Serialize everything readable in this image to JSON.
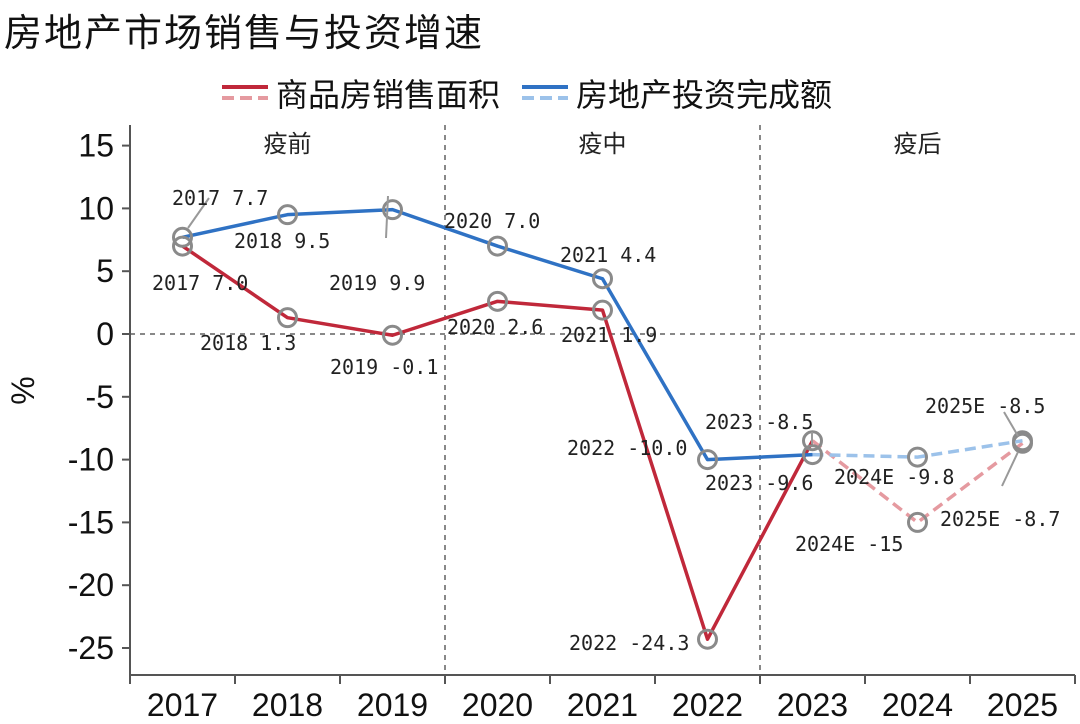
{
  "title": "房地产市场销售与投资增速",
  "colors": {
    "sales": "#c0283a",
    "sales_est": "#e59aa0",
    "invest": "#2f72c4",
    "invest_est": "#9cc2ea",
    "marker": "#8a8a8a",
    "divider": "#888888"
  },
  "legend": [
    {
      "label": "商品房销售面积",
      "solid": "#c0283a",
      "dashed": "#e59aa0"
    },
    {
      "label": "房地产投资完成额",
      "solid": "#2f72c4",
      "dashed": "#9cc2ea"
    }
  ],
  "phases": [
    "疫前",
    "疫中",
    "疫后"
  ],
  "chart_data": {
    "type": "line",
    "title": "房地产市场销售与投资增速",
    "xlabel": "",
    "ylabel": "%",
    "categories": [
      "2017",
      "2018",
      "2019",
      "2020",
      "2021",
      "2022",
      "2023",
      "2024",
      "2025"
    ],
    "ylim": [
      -27,
      17
    ],
    "yticks": [
      15,
      10,
      5,
      0,
      -5,
      -10,
      -15,
      -20,
      -25
    ],
    "series": [
      {
        "name": "商品房销售面积",
        "values": [
          7.0,
          1.3,
          -0.1,
          2.6,
          1.9,
          -24.3,
          -8.5,
          -15,
          -8.7
        ],
        "estimated_from_index": 6,
        "point_labels": [
          "2017 7.0",
          "2018 1.3",
          "2019 -0.1",
          "2020 2.6",
          "2021 1.9",
          "2022 -24.3",
          "2023 -8.5",
          "2024E -15",
          "2025E -8.7"
        ]
      },
      {
        "name": "房地产投资完成额",
        "values": [
          7.7,
          9.5,
          9.9,
          7.0,
          4.4,
          -10.0,
          -9.6,
          -9.8,
          -8.5
        ],
        "estimated_from_index": 6,
        "point_labels": [
          "2017 7.7",
          "2018 9.5",
          "2019 9.9",
          "2020 7.0",
          "2021 4.4",
          "2022 -10.0",
          "2023 -9.6",
          "2024E -9.8",
          "2025E -8.5"
        ]
      }
    ],
    "zero_line": true,
    "phase_dividers_after_index": [
      2,
      5
    ],
    "legend_position": "top"
  }
}
